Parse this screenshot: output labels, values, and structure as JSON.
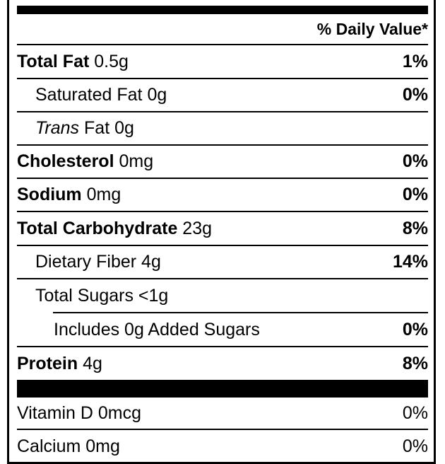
{
  "header": {
    "daily_value": "% Daily Value*"
  },
  "nutrients": [
    {
      "name": "Total Fat",
      "amount": "0.5g",
      "dv": "1%"
    },
    {
      "name": "Saturated Fat",
      "amount": "0g",
      "dv": "0%"
    },
    {
      "name_italic": "Trans",
      "name": "Fat",
      "amount": "0g",
      "dv": ""
    },
    {
      "name": "Cholesterol",
      "amount": "0mg",
      "dv": "0%"
    },
    {
      "name": "Sodium",
      "amount": "0mg",
      "dv": "0%"
    },
    {
      "name": "Total Carbohydrate",
      "amount": "23g",
      "dv": "8%"
    },
    {
      "name": "Dietary Fiber",
      "amount": "4g",
      "dv": "14%"
    },
    {
      "name": "Total Sugars",
      "amount": "<1g",
      "dv": ""
    },
    {
      "name": "Includes 0g Added Sugars",
      "amount": "",
      "dv": "0%"
    },
    {
      "name": "Protein",
      "amount": "4g",
      "dv": "8%"
    }
  ],
  "vitamins": [
    {
      "name": "Vitamin D",
      "amount": "0mcg",
      "dv": "0%"
    },
    {
      "name": "Calcium",
      "amount": "0mg",
      "dv": "0%"
    }
  ]
}
